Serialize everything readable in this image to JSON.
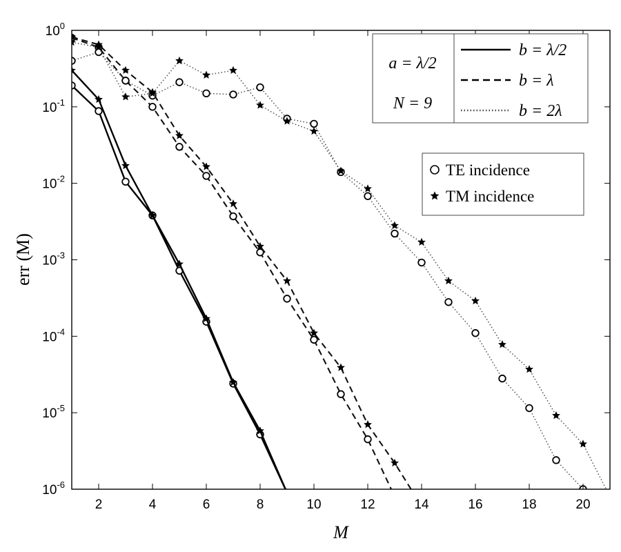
{
  "chart_data": {
    "type": "line",
    "xlabel": "M",
    "ylabel": "err (M)",
    "xlim": [
      1,
      21
    ],
    "ylim": [
      1e-06,
      1
    ],
    "yscale": "log",
    "x_ticks": [
      2,
      4,
      6,
      8,
      10,
      12,
      14,
      16,
      18,
      20
    ],
    "y_ticks": [
      {
        "value": 1,
        "base": "10",
        "exp": "0"
      },
      {
        "value": 0.1,
        "base": "10",
        "exp": "-1"
      },
      {
        "value": 0.01,
        "base": "10",
        "exp": "-2"
      },
      {
        "value": 0.001,
        "base": "10",
        "exp": "-3"
      },
      {
        "value": 0.0001,
        "base": "10",
        "exp": "-4"
      },
      {
        "value": 1e-05,
        "base": "10",
        "exp": "-5"
      },
      {
        "value": 1e-06,
        "base": "10",
        "exp": "-6"
      }
    ],
    "grid": false,
    "params_box": {
      "line1": "a = λ/2",
      "line2": "N = 9"
    },
    "legend_lines": [
      {
        "style": "solid",
        "label": "b = λ/2"
      },
      {
        "style": "dashed",
        "label": "b = λ"
      },
      {
        "style": "dotted",
        "label": "b = 2λ"
      }
    ],
    "legend_markers": [
      {
        "marker": "open-circle",
        "label": "TE incidence"
      },
      {
        "marker": "star",
        "label": "TM incidence"
      }
    ],
    "series": [
      {
        "style": "solid",
        "marker": "open-circle",
        "x": [
          1,
          2,
          3,
          4,
          5,
          6,
          7,
          8,
          9
        ],
        "y": [
          0.19,
          0.088,
          0.0105,
          0.0038,
          0.00072,
          0.000155,
          2.4e-05,
          5.2e-06,
          9e-07
        ]
      },
      {
        "style": "solid",
        "marker": "star",
        "x": [
          1,
          2,
          3,
          4,
          5,
          6,
          7,
          8,
          9
        ],
        "y": [
          0.3,
          0.125,
          0.017,
          0.0038,
          0.00088,
          0.00017,
          2.5e-05,
          5.8e-06,
          9e-07
        ]
      },
      {
        "style": "dashed",
        "marker": "open-circle",
        "x": [
          1,
          2,
          3,
          4,
          5,
          6,
          7,
          8,
          9,
          10,
          11,
          12,
          13
        ],
        "y": [
          0.8,
          0.6,
          0.22,
          0.1,
          0.03,
          0.0125,
          0.0037,
          0.00125,
          0.00031,
          9e-05,
          1.75e-05,
          4.5e-06,
          8e-07
        ]
      },
      {
        "style": "dashed",
        "marker": "star",
        "x": [
          1,
          2,
          3,
          4,
          5,
          6,
          7,
          8,
          9,
          10,
          11,
          12,
          13,
          14
        ],
        "y": [
          0.82,
          0.65,
          0.3,
          0.155,
          0.042,
          0.0165,
          0.0054,
          0.0015,
          0.00053,
          0.00011,
          3.9e-05,
          7e-06,
          2.2e-06,
          6e-07
        ]
      },
      {
        "style": "dotted",
        "marker": "open-circle",
        "x": [
          1,
          2,
          3,
          4,
          5,
          6,
          7,
          8,
          9,
          10,
          11,
          12,
          13,
          14,
          15,
          16,
          17,
          18,
          19,
          20,
          21
        ],
        "y": [
          0.4,
          0.52,
          0.22,
          0.14,
          0.21,
          0.15,
          0.145,
          0.18,
          0.07,
          0.06,
          0.014,
          0.0068,
          0.0022,
          0.00092,
          0.00028,
          0.00011,
          2.8e-05,
          1.15e-05,
          2.4e-06,
          1e-06,
          5e-07
        ]
      },
      {
        "style": "dotted",
        "marker": "star",
        "x": [
          1,
          2,
          3,
          4,
          5,
          6,
          7,
          8,
          9,
          10,
          11,
          12,
          13,
          14,
          15,
          16,
          17,
          18,
          19,
          20,
          21
        ],
        "y": [
          0.7,
          0.6,
          0.135,
          0.15,
          0.4,
          0.26,
          0.3,
          0.105,
          0.065,
          0.048,
          0.0145,
          0.0085,
          0.0028,
          0.0017,
          0.00053,
          0.00029,
          7.8e-05,
          3.7e-05,
          9.2e-06,
          3.9e-06,
          8e-07
        ]
      }
    ]
  }
}
